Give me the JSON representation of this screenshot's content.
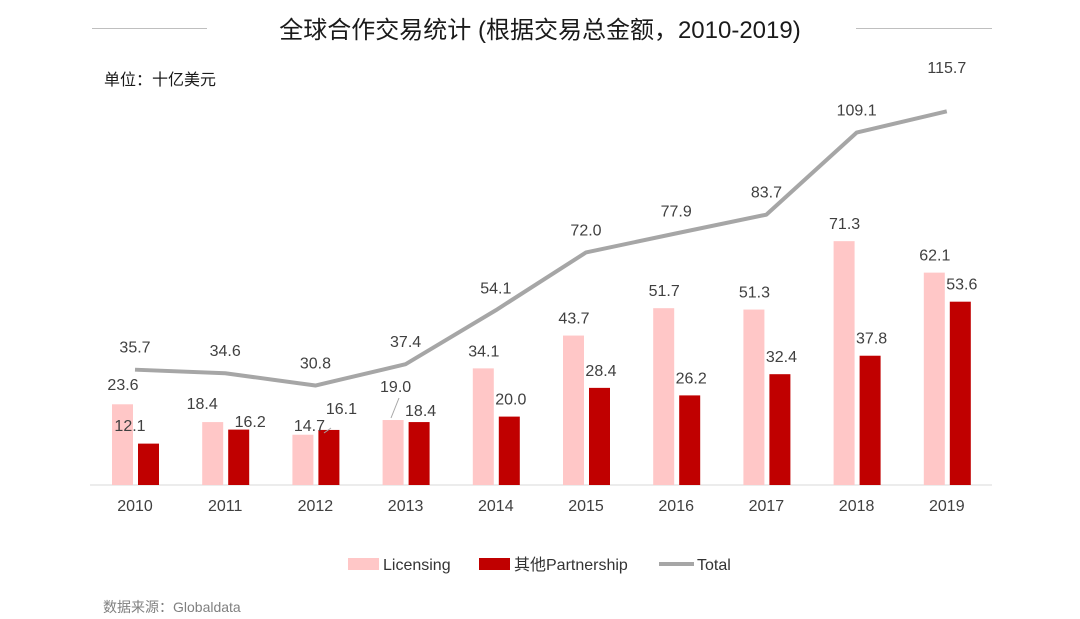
{
  "chart_data": {
    "type": "bar",
    "title": "全球合作交易统计 (根据交易总金额，2010-2019)",
    "unit": "单位：十亿美元",
    "source": "数据来源：Globaldata",
    "categories": [
      "2010",
      "2011",
      "2012",
      "2013",
      "2014",
      "2015",
      "2016",
      "2017",
      "2018",
      "2019"
    ],
    "series": [
      {
        "name": "Licensing",
        "kind": "bar",
        "color": "#ffc7c7",
        "values": [
          23.6,
          18.4,
          14.7,
          19.0,
          34.1,
          43.7,
          51.7,
          51.3,
          71.3,
          62.1
        ]
      },
      {
        "name": "其他Partnership",
        "kind": "bar",
        "color": "#c00000",
        "values": [
          12.1,
          16.2,
          16.1,
          18.4,
          20.0,
          28.4,
          26.2,
          32.4,
          37.8,
          53.6
        ]
      },
      {
        "name": "Total",
        "kind": "line",
        "color": "#a6a6a6",
        "values": [
          35.7,
          34.6,
          30.8,
          37.4,
          54.1,
          72.0,
          77.9,
          83.7,
          109.1,
          115.7
        ]
      }
    ],
    "ylim": [
      0,
      120
    ],
    "grid": false,
    "legend": "bottom"
  }
}
